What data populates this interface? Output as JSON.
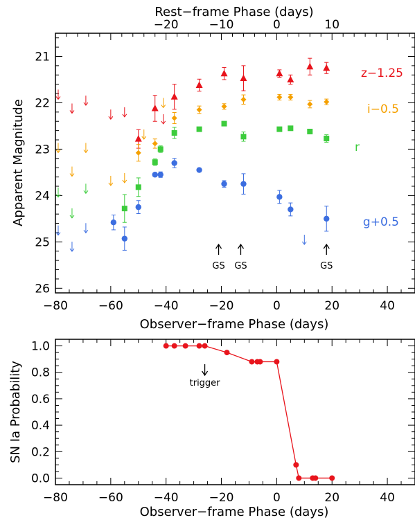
{
  "chart_data": [
    {
      "type": "scatter",
      "xlabel": "Observer−frame Phase (days)",
      "ylabel": "Apparent Magnitude",
      "top_xlabel": "Rest−frame Phase (days)",
      "xlim": [
        -80,
        50
      ],
      "ylim": [
        26.1,
        20.5
      ],
      "x_ticks": [
        -80,
        -60,
        -40,
        -20,
        0,
        20,
        40
      ],
      "y_ticks": [
        21,
        22,
        23,
        24,
        25,
        26
      ],
      "top_ticks": [
        -20,
        -10,
        0,
        10
      ],
      "top_tick_scale": 0.5,
      "series": [
        {
          "name": "z−1.25",
          "band": "z",
          "color": "#e8141c",
          "marker": "triangle",
          "points": [
            [
              -50,
              22.78,
              0.2
            ],
            [
              -44,
              22.12,
              0.28
            ],
            [
              -37,
              21.87,
              0.27
            ],
            [
              -28,
              21.62,
              0.13
            ],
            [
              -19,
              21.37,
              0.13
            ],
            [
              -12,
              21.47,
              0.27
            ],
            [
              1,
              21.37,
              0.08
            ],
            [
              5,
              21.5,
              0.1
            ],
            [
              12,
              21.22,
              0.18
            ],
            [
              18,
              21.25,
              0.12
            ]
          ],
          "upper_limits": [
            [
              -79,
              21.82
            ],
            [
              -74,
              22.12
            ],
            [
              -69,
              21.95
            ],
            [
              -60,
              22.25
            ],
            [
              -55,
              22.2
            ],
            [
              -41,
              22.35
            ]
          ]
        },
        {
          "name": "i−0.5",
          "band": "i",
          "color": "#f5a000",
          "marker": "diamond",
          "points": [
            [
              -50,
              23.08,
              0.18
            ],
            [
              -44,
              22.88,
              0.1
            ],
            [
              -37,
              22.33,
              0.12
            ],
            [
              -28,
              22.15,
              0.08
            ],
            [
              -19,
              22.08,
              0.06
            ],
            [
              -12,
              21.93,
              0.1
            ],
            [
              1,
              21.88,
              0.06
            ],
            [
              5,
              21.88,
              0.06
            ],
            [
              12,
              22.03,
              0.08
            ],
            [
              18,
              21.98,
              0.06
            ]
          ],
          "upper_limits": [
            [
              -79,
              22.97
            ],
            [
              -74,
              23.48
            ],
            [
              -69,
              22.97
            ],
            [
              -60,
              23.68
            ],
            [
              -55,
              23.62
            ],
            [
              -48,
              22.68
            ],
            [
              -41,
              22.0
            ]
          ]
        },
        {
          "name": "r",
          "band": "r",
          "color": "#3ccc3c",
          "marker": "square",
          "points": [
            [
              -55,
              24.28,
              0.3
            ],
            [
              -50,
              23.82,
              0.2
            ],
            [
              -44,
              23.28,
              0.07
            ],
            [
              -42,
              23.0,
              0.07
            ],
            [
              -37,
              22.65,
              0.12
            ],
            [
              -28,
              22.57,
              0.04
            ],
            [
              -19,
              22.45,
              0.04
            ],
            [
              -12,
              22.73,
              0.1
            ],
            [
              1,
              22.57,
              0.04
            ],
            [
              5,
              22.55,
              0.04
            ],
            [
              12,
              22.62,
              0.04
            ],
            [
              18,
              22.77,
              0.08
            ]
          ],
          "upper_limits": [
            [
              -79,
              23.93
            ],
            [
              -74,
              24.38
            ],
            [
              -69,
              23.85
            ]
          ]
        },
        {
          "name": "g+0.5",
          "band": "g",
          "color": "#3c6ee0",
          "marker": "circle",
          "points": [
            [
              -59,
              24.58,
              0.16
            ],
            [
              -55,
              24.93,
              0.25
            ],
            [
              -50,
              24.25,
              0.14
            ],
            [
              -44,
              23.55,
              0.04
            ],
            [
              -42,
              23.55,
              0.06
            ],
            [
              -37,
              23.3,
              0.1
            ],
            [
              -28,
              23.45,
              0.04
            ],
            [
              -19,
              23.75,
              0.07
            ],
            [
              -12,
              23.75,
              0.22
            ],
            [
              1,
              24.03,
              0.14
            ],
            [
              5,
              24.3,
              0.14
            ],
            [
              18,
              24.5,
              0.27
            ]
          ],
          "upper_limits": [
            [
              -79,
              24.75
            ],
            [
              -74,
              25.1
            ],
            [
              -69,
              24.7
            ],
            [
              10,
              24.95
            ]
          ]
        }
      ],
      "annotations": [
        {
          "text": "GS",
          "x": -21
        },
        {
          "text": "GS",
          "x": -13
        },
        {
          "text": "GS",
          "x": 18
        }
      ]
    },
    {
      "type": "line",
      "xlabel": "Observer−frame Phase (days)",
      "ylabel": "SN Ia Probability",
      "xlim": [
        -80,
        50
      ],
      "ylim": [
        -0.05,
        1.05
      ],
      "x_ticks": [
        -80,
        -60,
        -40,
        -20,
        0,
        20,
        40
      ],
      "y_ticks": [
        "0.0",
        "0.2",
        "0.4",
        "0.6",
        "0.8",
        "1.0"
      ],
      "color": "#e8141c",
      "x": [
        -40,
        -37,
        -33,
        -28,
        -26,
        -18,
        -9,
        -7,
        -6,
        0,
        7,
        8,
        13,
        14,
        20
      ],
      "y": [
        1.0,
        1.0,
        1.0,
        1.0,
        1.0,
        0.95,
        0.88,
        0.88,
        0.88,
        0.88,
        0.1,
        0.0,
        0.0,
        0.0,
        0.0
      ],
      "annotation": {
        "text": "trigger",
        "x": -26,
        "y": 0.85
      }
    }
  ]
}
